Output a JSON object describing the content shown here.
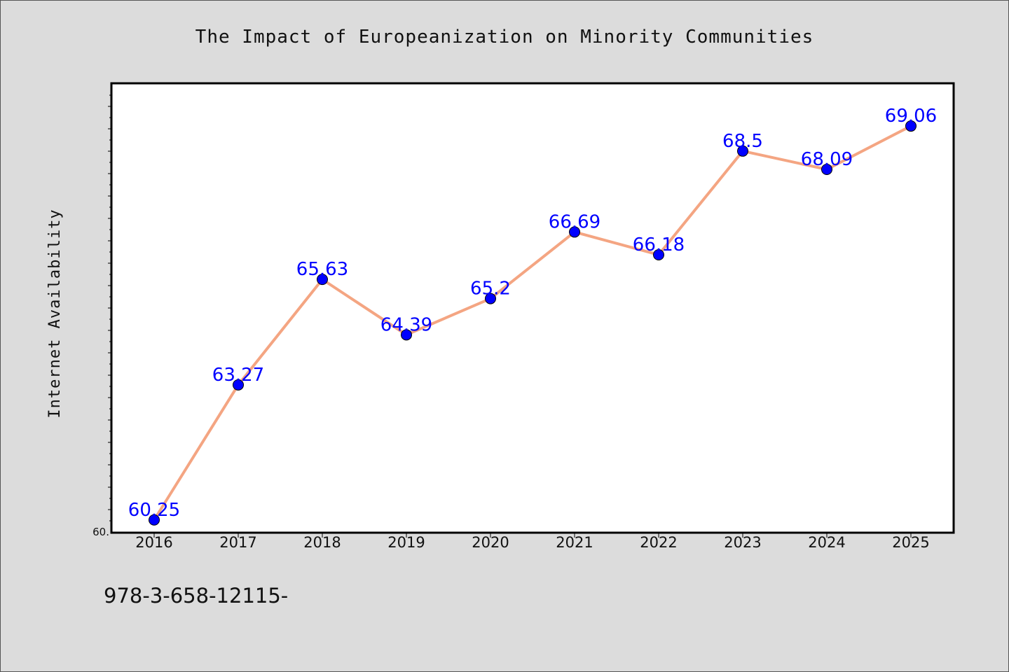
{
  "chart_data": {
    "type": "line",
    "title": "The Impact of Europeanization on Minority Communities",
    "xlabel": "",
    "ylabel": "Internet Availability",
    "categories": [
      "2016",
      "2017",
      "2018",
      "2019",
      "2020",
      "2021",
      "2022",
      "2023",
      "2024",
      "2025"
    ],
    "series": [
      {
        "name": "",
        "values": [
          60.25,
          63.27,
          65.63,
          64.39,
          65.2,
          66.69,
          66.18,
          68.5,
          68.09,
          69.06
        ],
        "line_color": "#f4a582",
        "marker_color": "#0000ff"
      }
    ],
    "ytick_labels": [
      "60."
    ],
    "ylim": [
      59.98,
      70.0
    ],
    "grid": false,
    "legend": "none"
  },
  "footnote": "978-3-658-12115-"
}
